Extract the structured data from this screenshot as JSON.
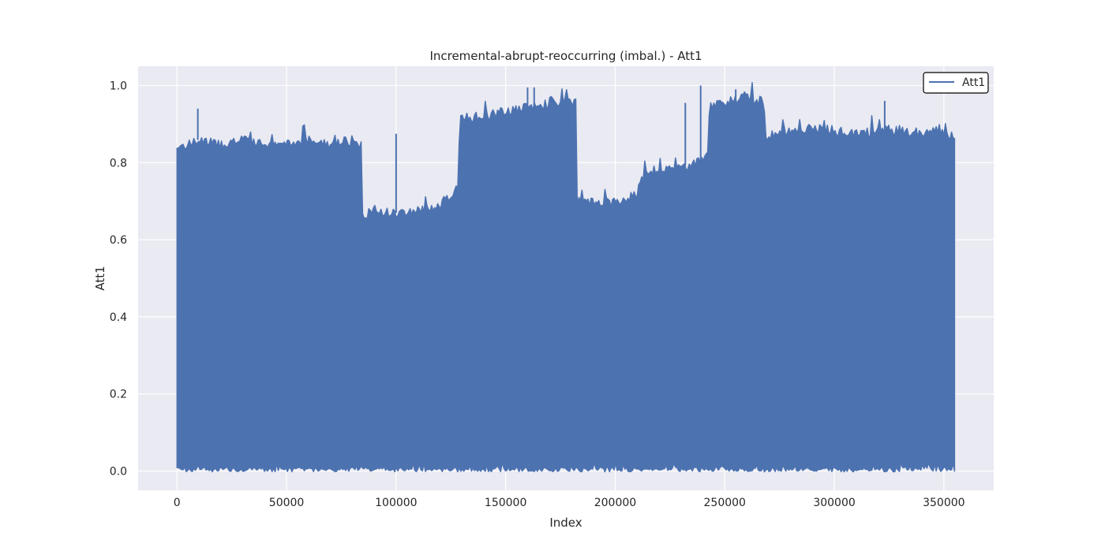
{
  "chart_data": {
    "type": "line",
    "title": "Incremental-abrupt-reoccurring (imbal.) - Att1",
    "xlabel": "Index",
    "ylabel": "Att1",
    "xlim": [
      -17750,
      372750
    ],
    "ylim": [
      -0.05,
      1.05
    ],
    "xticks": [
      0,
      50000,
      100000,
      150000,
      200000,
      250000,
      300000,
      350000
    ],
    "yticks": [
      0.0,
      0.2,
      0.4,
      0.6,
      0.8,
      1.0
    ],
    "xtick_labels": [
      "0",
      "50000",
      "100000",
      "150000",
      "200000",
      "250000",
      "300000",
      "350000"
    ],
    "ytick_labels": [
      "0.0",
      "0.2",
      "0.4",
      "0.6",
      "0.8",
      "1.0"
    ],
    "grid": true,
    "legend_position": "top-right",
    "series": [
      {
        "name": "Att1",
        "color": "#4c72b0",
        "note_range": "values fluctuate densely between near 0 and the upper envelope",
        "upper_envelope": {
          "x": [
            0,
            5000,
            10000,
            20000,
            30000,
            40000,
            50000,
            60000,
            70000,
            80000,
            84000,
            84500,
            90000,
            100000,
            110000,
            120000,
            124000,
            127000,
            128500,
            129000,
            135000,
            145000,
            155000,
            165000,
            175000,
            182000,
            182500,
            190000,
            200000,
            210000,
            211000,
            215000,
            220000,
            230000,
            237000,
            240000,
            242500,
            243000,
            250000,
            260000,
            268000,
            268500,
            275000,
            285000,
            295000,
            305000,
            315000,
            325000,
            335000,
            345000,
            355000
          ],
          "y": [
            0.84,
            0.85,
            0.86,
            0.85,
            0.86,
            0.85,
            0.85,
            0.86,
            0.85,
            0.86,
            0.85,
            0.66,
            0.68,
            0.67,
            0.68,
            0.69,
            0.71,
            0.73,
            0.73,
            0.92,
            0.92,
            0.93,
            0.94,
            0.95,
            0.96,
            0.96,
            0.7,
            0.7,
            0.7,
            0.72,
            0.76,
            0.77,
            0.78,
            0.79,
            0.8,
            0.81,
            0.82,
            0.95,
            0.96,
            0.97,
            0.96,
            0.87,
            0.88,
            0.89,
            0.89,
            0.88,
            0.88,
            0.89,
            0.88,
            0.88,
            0.87
          ]
        },
        "lower_envelope": {
          "x": [
            0,
            100000,
            200000,
            300000,
            355000
          ],
          "y": [
            0.01,
            0.01,
            0.01,
            0.01,
            0.01
          ]
        },
        "spikes": [
          {
            "x": 9500,
            "y": 0.94
          },
          {
            "x": 100000,
            "y": 0.875
          },
          {
            "x": 100500,
            "y": 0.62
          },
          {
            "x": 160000,
            "y": 0.995
          },
          {
            "x": 163000,
            "y": 0.995
          },
          {
            "x": 232000,
            "y": 0.955
          },
          {
            "x": 239000,
            "y": 1.0
          },
          {
            "x": 255000,
            "y": 0.99
          },
          {
            "x": 323000,
            "y": 0.96
          }
        ]
      }
    ]
  }
}
